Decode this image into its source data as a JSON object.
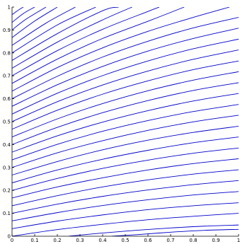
{
  "chart_data": {
    "type": "line",
    "title": "",
    "xlabel": "",
    "ylabel": "",
    "xlim": [
      0,
      1
    ],
    "ylim": [
      0,
      1
    ],
    "grid": false,
    "legend": "none",
    "line_color": "#0000cc",
    "xticks": [
      "0",
      "0.1",
      "0.2",
      "0.3",
      "0.4",
      "0.5",
      "0.6",
      "0.7",
      "0.8",
      "0.9",
      "1"
    ],
    "yticks": [
      "0",
      "0.1",
      "0.2",
      "0.3",
      "0.4",
      "0.5",
      "0.6",
      "0.7",
      "0.8",
      "0.9",
      "1"
    ],
    "series": [
      {
        "x": [
          0.44,
          0.55,
          0.7,
          0.85,
          1.0
        ],
        "y": [
          0.0,
          0.0067,
          0.0175,
          0.0257,
          0.03
        ]
      },
      {
        "x": [
          0.25,
          0.4,
          0.55,
          0.7,
          0.85,
          1.0
        ],
        "y": [
          0.0,
          0.014,
          0.026,
          0.036,
          0.044,
          0.049
        ]
      },
      {
        "x": [
          0.0,
          0.2,
          0.4,
          0.6,
          0.8,
          1.0
        ],
        "y": [
          0.0,
          0.029,
          0.052,
          0.072,
          0.087,
          0.1
        ]
      },
      {
        "x": [
          0.0,
          0.2,
          0.4,
          0.6,
          0.8,
          1.0
        ],
        "y": [
          0.033,
          0.066,
          0.093,
          0.116,
          0.133,
          0.146
        ]
      },
      {
        "x": [
          0.0,
          0.2,
          0.4,
          0.6,
          0.8,
          1.0
        ],
        "y": [
          0.067,
          0.103,
          0.134,
          0.159,
          0.18,
          0.195
        ]
      },
      {
        "x": [
          0.0,
          0.2,
          0.4,
          0.6,
          0.8,
          1.0
        ],
        "y": [
          0.1,
          0.14,
          0.174,
          0.202,
          0.225,
          0.243
        ]
      },
      {
        "x": [
          0.0,
          0.2,
          0.4,
          0.6,
          0.8,
          1.0
        ],
        "y": [
          0.133,
          0.177,
          0.215,
          0.246,
          0.271,
          0.29
        ]
      },
      {
        "x": [
          0.0,
          0.2,
          0.4,
          0.6,
          0.8,
          1.0
        ],
        "y": [
          0.167,
          0.215,
          0.255,
          0.289,
          0.317,
          0.338
        ]
      },
      {
        "x": [
          0.0,
          0.2,
          0.4,
          0.6,
          0.8,
          1.0
        ],
        "y": [
          0.2,
          0.252,
          0.296,
          0.332,
          0.362,
          0.385
        ]
      },
      {
        "x": [
          0.0,
          0.2,
          0.4,
          0.6,
          0.8,
          1.0
        ],
        "y": [
          0.233,
          0.289,
          0.336,
          0.375,
          0.408,
          0.433
        ]
      },
      {
        "x": [
          0.0,
          0.2,
          0.4,
          0.6,
          0.8,
          1.0
        ],
        "y": [
          0.267,
          0.326,
          0.377,
          0.419,
          0.453,
          0.48
        ]
      },
      {
        "x": [
          0.0,
          0.2,
          0.4,
          0.6,
          0.8,
          1.0
        ],
        "y": [
          0.3,
          0.364,
          0.417,
          0.462,
          0.499,
          0.528
        ]
      },
      {
        "x": [
          0.0,
          0.2,
          0.4,
          0.6,
          0.8,
          1.0
        ],
        "y": [
          0.333,
          0.401,
          0.458,
          0.505,
          0.544,
          0.575
        ]
      },
      {
        "x": [
          0.0,
          0.2,
          0.4,
          0.6,
          0.8,
          1.0
        ],
        "y": [
          0.367,
          0.438,
          0.498,
          0.548,
          0.59,
          0.623
        ]
      },
      {
        "x": [
          0.0,
          0.2,
          0.4,
          0.6,
          0.8,
          1.0
        ],
        "y": [
          0.4,
          0.475,
          0.539,
          0.592,
          0.636,
          0.67
        ]
      },
      {
        "x": [
          0.0,
          0.2,
          0.4,
          0.6,
          0.8,
          1.0
        ],
        "y": [
          0.433,
          0.512,
          0.579,
          0.635,
          0.681,
          0.718
        ]
      },
      {
        "x": [
          0.0,
          0.2,
          0.4,
          0.6,
          0.8,
          1.0
        ],
        "y": [
          0.467,
          0.55,
          0.62,
          0.678,
          0.727,
          0.765
        ]
      },
      {
        "x": [
          0.0,
          0.2,
          0.4,
          0.6,
          0.8,
          1.0
        ],
        "y": [
          0.5,
          0.587,
          0.66,
          0.721,
          0.772,
          0.813
        ]
      },
      {
        "x": [
          0.0,
          0.2,
          0.4,
          0.6,
          0.8,
          1.0
        ],
        "y": [
          0.533,
          0.624,
          0.701,
          0.765,
          0.818,
          0.86
        ]
      },
      {
        "x": [
          0.0,
          0.2,
          0.4,
          0.6,
          0.8,
          1.0
        ],
        "y": [
          0.567,
          0.661,
          0.741,
          0.808,
          0.863,
          0.908
        ]
      },
      {
        "x": [
          0.0,
          0.2,
          0.4,
          0.6,
          0.8,
          1.0
        ],
        "y": [
          0.6,
          0.698,
          0.782,
          0.851,
          0.909,
          0.955
        ]
      },
      {
        "x": [
          0.0,
          0.2,
          0.4,
          0.6,
          0.8,
          0.96
        ],
        "y": [
          0.633,
          0.736,
          0.822,
          0.894,
          0.955,
          1.0
        ]
      },
      {
        "x": [
          0.0,
          0.2,
          0.4,
          0.6,
          0.76
        ],
        "y": [
          0.667,
          0.773,
          0.863,
          0.938,
          1.0
        ]
      },
      {
        "x": [
          0.0,
          0.2,
          0.4,
          0.6,
          0.65
        ],
        "y": [
          0.7,
          0.81,
          0.903,
          0.981,
          1.0
        ]
      },
      {
        "x": [
          0.0,
          0.2,
          0.4,
          0.53
        ],
        "y": [
          0.733,
          0.847,
          0.944,
          1.0
        ]
      },
      {
        "x": [
          0.0,
          0.2,
          0.4,
          0.47
        ],
        "y": [
          0.767,
          0.884,
          0.984,
          1.0
        ]
      },
      {
        "x": [
          0.0,
          0.2,
          0.37
        ],
        "y": [
          0.8,
          0.922,
          1.0
        ]
      },
      {
        "x": [
          0.0,
          0.15,
          0.28
        ],
        "y": [
          0.833,
          0.93,
          1.0
        ]
      },
      {
        "x": [
          0.0,
          0.1,
          0.2
        ],
        "y": [
          0.867,
          0.939,
          1.0
        ]
      },
      {
        "x": [
          0.0,
          0.06,
          0.15
        ],
        "y": [
          0.9,
          0.946,
          1.0
        ]
      },
      {
        "x": [
          0.0,
          0.05,
          0.1
        ],
        "y": [
          0.933,
          0.972,
          1.0
        ]
      },
      {
        "x": [
          0.0,
          0.03,
          0.05
        ],
        "y": [
          0.967,
          0.988,
          1.0
        ]
      }
    ]
  }
}
